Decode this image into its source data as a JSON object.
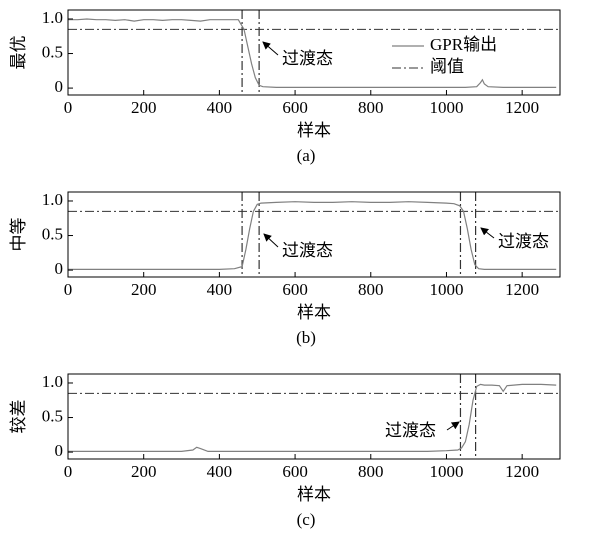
{
  "chart_data": [
    {
      "type": "line",
      "ylabel": "最优",
      "xlabel": "样本",
      "caption": "(a)",
      "xlim": [
        0,
        1300
      ],
      "ylim": [
        -0.1,
        1.13
      ],
      "xticks": [
        0,
        200,
        400,
        600,
        800,
        1000,
        1200
      ],
      "yticks": [
        0,
        0.5,
        {
          "value": 1,
          "label": "1.0"
        }
      ],
      "legend": "upper right",
      "x": [
        0,
        25,
        50,
        75,
        100,
        125,
        150,
        175,
        200,
        225,
        250,
        275,
        300,
        325,
        350,
        375,
        400,
        425,
        450,
        465,
        475,
        485,
        495,
        505,
        515,
        550,
        600,
        650,
        700,
        750,
        800,
        850,
        900,
        950,
        1000,
        1050,
        1080,
        1090,
        1095,
        1100,
        1110,
        1150,
        1200,
        1290
      ],
      "series": [
        {
          "name": "GPR输出",
          "color": "#808080",
          "values": [
            0.99,
            0.99,
            1.0,
            0.99,
            0.99,
            0.98,
            0.99,
            0.97,
            0.99,
            0.99,
            0.98,
            0.99,
            0.99,
            0.98,
            0.97,
            0.99,
            0.99,
            0.99,
            0.99,
            0.85,
            0.6,
            0.35,
            0.15,
            0.04,
            0.02,
            0.01,
            0.01,
            0.01,
            0.01,
            0.01,
            0.01,
            0.01,
            0.01,
            0.01,
            0.01,
            0.01,
            0.02,
            0.08,
            0.12,
            0.06,
            0.02,
            0.01,
            0.01,
            0.01
          ]
        }
      ],
      "threshold": {
        "name": "阈值",
        "value": 0.85,
        "color": "#333333"
      },
      "vlines": [
        460,
        505
      ],
      "annotations": [
        "过渡态"
      ]
    },
    {
      "type": "line",
      "ylabel": "中等",
      "xlabel": "样本",
      "caption": "(b)",
      "xlim": [
        0,
        1300
      ],
      "ylim": [
        -0.1,
        1.13
      ],
      "xticks": [
        0,
        200,
        400,
        600,
        800,
        1000,
        1200
      ],
      "yticks": [
        0,
        0.5,
        {
          "value": 1,
          "label": "1.0"
        }
      ],
      "x": [
        0,
        50,
        100,
        150,
        200,
        250,
        300,
        350,
        400,
        440,
        460,
        470,
        480,
        490,
        500,
        510,
        550,
        600,
        650,
        700,
        750,
        800,
        850,
        900,
        950,
        1000,
        1020,
        1035,
        1045,
        1055,
        1065,
        1075,
        1085,
        1100,
        1150,
        1200,
        1250,
        1290
      ],
      "series": [
        {
          "color": "#808080",
          "values": [
            0.01,
            0.01,
            0.01,
            0.01,
            0.01,
            0.01,
            0.01,
            0.01,
            0.01,
            0.02,
            0.05,
            0.3,
            0.6,
            0.85,
            0.95,
            0.97,
            0.98,
            0.99,
            0.98,
            0.98,
            0.99,
            0.98,
            0.98,
            0.99,
            0.98,
            0.97,
            0.96,
            0.93,
            0.85,
            0.6,
            0.3,
            0.08,
            0.02,
            0.01,
            0.01,
            0.01,
            0.01,
            0.01
          ]
        }
      ],
      "threshold": {
        "value": 0.85,
        "color": "#333333"
      },
      "vlines": [
        460,
        505,
        1037,
        1077
      ],
      "annotations": [
        "过渡态",
        "过渡态"
      ]
    },
    {
      "type": "line",
      "ylabel": "较差",
      "xlabel": "样本",
      "caption": "(c)",
      "xlim": [
        0,
        1300
      ],
      "ylim": [
        -0.1,
        1.13
      ],
      "xticks": [
        0,
        200,
        400,
        600,
        800,
        1000,
        1200
      ],
      "yticks": [
        0,
        0.5,
        {
          "value": 1,
          "label": "1.0"
        }
      ],
      "x": [
        0,
        50,
        100,
        150,
        200,
        250,
        300,
        330,
        340,
        350,
        370,
        400,
        450,
        500,
        550,
        600,
        650,
        700,
        750,
        800,
        850,
        900,
        950,
        1000,
        1030,
        1040,
        1050,
        1060,
        1070,
        1080,
        1090,
        1100,
        1120,
        1140,
        1150,
        1160,
        1200,
        1250,
        1290
      ],
      "series": [
        {
          "color": "#808080",
          "values": [
            0.01,
            0.01,
            0.01,
            0.01,
            0.01,
            0.01,
            0.01,
            0.03,
            0.07,
            0.05,
            0.01,
            0.01,
            0.01,
            0.01,
            0.01,
            0.01,
            0.01,
            0.01,
            0.01,
            0.01,
            0.01,
            0.01,
            0.01,
            0.02,
            0.03,
            0.06,
            0.15,
            0.4,
            0.75,
            0.95,
            0.98,
            0.97,
            0.97,
            0.96,
            0.88,
            0.96,
            0.98,
            0.98,
            0.97
          ]
        }
      ],
      "threshold": {
        "value": 0.85,
        "color": "#333333"
      },
      "vlines": [
        1037,
        1077
      ],
      "annotations": [
        "过渡态"
      ]
    }
  ]
}
